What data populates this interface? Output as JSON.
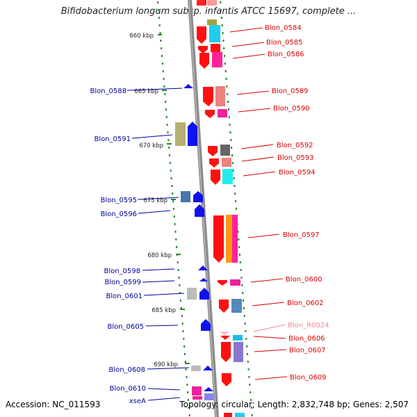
{
  "title": "Bifidobacterium longum subsp. infantis ATCC 15697, complete ...",
  "footer": {
    "accession": "Accession: NC_011593",
    "summary": "Topology: circular; Length: 2,832,748 bp; Genes: 2,507"
  },
  "colors": {
    "backbone": "#8c8c8c",
    "forward_label": "#dd0000",
    "reverse_label": "#000099",
    "rna_label": "#ee8899",
    "tick": "#228822"
  },
  "scale": {
    "unit": "kbp",
    "ticks": [
      "660 kbp",
      "665 kbp",
      "670 kbp",
      "675 kbp",
      "680 kbp",
      "685 kbp",
      "690 kbp"
    ]
  },
  "features": {
    "right": [
      {
        "label": "Blon_0584",
        "color": "#ee1111"
      },
      {
        "label": "Blon_0585",
        "color": "#ee1111"
      },
      {
        "label": "Blon_0586",
        "color": "#ee1111"
      },
      {
        "label": "Blon_0589",
        "color": "#ee1111"
      },
      {
        "label": "Blon_0590",
        "color": "#ee1111"
      },
      {
        "label": "Blon_0592",
        "color": "#ee1111"
      },
      {
        "label": "Blon_0593",
        "color": "#ee1111"
      },
      {
        "label": "Blon_0594",
        "color": "#ee1111"
      },
      {
        "label": "Blon_0597",
        "color": "#ee1111"
      },
      {
        "label": "Blon_0600",
        "color": "#ee1111"
      },
      {
        "label": "Blon_0602",
        "color": "#ee1111"
      },
      {
        "label": "Blon_R0024",
        "color": "#ee8899"
      },
      {
        "label": "Blon_0606",
        "color": "#ee1111"
      },
      {
        "label": "Blon_0607",
        "color": "#ee1111"
      },
      {
        "label": "Blon_0609",
        "color": "#ee1111"
      }
    ],
    "left": [
      {
        "label": "Blon_0588",
        "color": "#0000ee"
      },
      {
        "label": "Blon_0591",
        "color": "#0000ee"
      },
      {
        "label": "Blon_0595",
        "color": "#0000ee"
      },
      {
        "label": "Blon_0596",
        "color": "#0000ee"
      },
      {
        "label": "Blon_0598",
        "color": "#0000ee"
      },
      {
        "label": "Blon_0599",
        "color": "#0000ee"
      },
      {
        "label": "Blon_0601",
        "color": "#0000ee"
      },
      {
        "label": "Blon_0605",
        "color": "#0000ee"
      },
      {
        "label": "Blon_0608",
        "color": "#0000ee"
      },
      {
        "label": "Blon_0610",
        "color": "#0000ee"
      },
      {
        "label": "xseA",
        "color": "#0000ee"
      }
    ]
  }
}
